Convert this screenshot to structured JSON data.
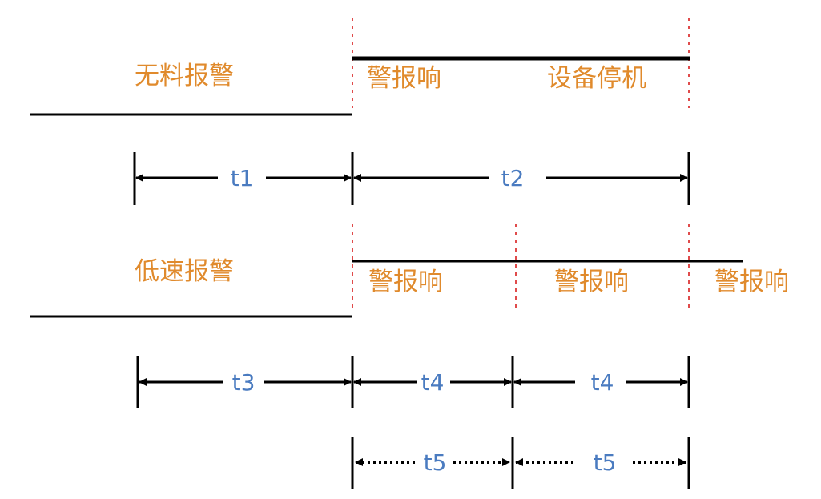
{
  "colors": {
    "label_text": "#e08a2c",
    "interval_text": "#4a7bc0",
    "signal_line": "#000000",
    "guide_line": "#e04b4b"
  },
  "material_alarm": {
    "title": "无料报警",
    "phase_1": "警报响",
    "phase_2": "设备停机"
  },
  "speed_alarm": {
    "title": "低速报警",
    "phase_1": "警报响",
    "phase_2": "警报响",
    "phase_3": "警报响"
  },
  "intervals": {
    "t1": "t1",
    "t2": "t2",
    "t3": "t3",
    "t4a": "t4",
    "t4b": "t4",
    "t5a": "t5",
    "t5b": "t5"
  }
}
